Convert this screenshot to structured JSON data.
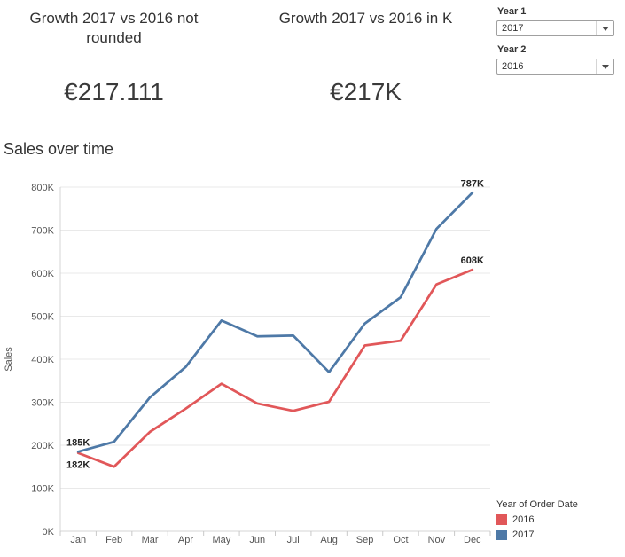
{
  "kpis": [
    {
      "title": "Growth 2017 vs 2016 not rounded",
      "value": "€217.111"
    },
    {
      "title": "Growth 2017 vs 2016 in K",
      "value": "€217K"
    }
  ],
  "filters": [
    {
      "label": "Year 1",
      "value": "2017"
    },
    {
      "label": "Year 2",
      "value": "2016"
    }
  ],
  "chart_heading": "Sales over time",
  "chart_data": {
    "type": "line",
    "title": "Sales over time",
    "x": [
      "Jan",
      "Feb",
      "Mar",
      "Apr",
      "May",
      "Jun",
      "Jul",
      "Aug",
      "Sep",
      "Oct",
      "Nov",
      "Dec"
    ],
    "xlabel": "",
    "ylabel": "Sales",
    "ylim": [
      0,
      800
    ],
    "yticks": [
      "0K",
      "100K",
      "200K",
      "300K",
      "400K",
      "500K",
      "600K",
      "700K",
      "800K"
    ],
    "grid": true,
    "legend_title": "Year of Order Date",
    "legend_position": "bottom-right",
    "series": [
      {
        "name": "2016",
        "color": "#E15759",
        "values": [
          182,
          150,
          231,
          285,
          343,
          297,
          280,
          301,
          432,
          443,
          574,
          608
        ]
      },
      {
        "name": "2017",
        "color": "#4E79A7",
        "values": [
          185,
          208,
          311,
          382,
          490,
          453,
          455,
          370,
          483,
          544,
          703,
          787
        ]
      }
    ],
    "annotations": [
      {
        "text": "185K",
        "series": "2017",
        "month": "Jan",
        "side": "above"
      },
      {
        "text": "182K",
        "series": "2016",
        "month": "Jan",
        "side": "below"
      },
      {
        "text": "787K",
        "series": "2017",
        "month": "Dec",
        "side": "above"
      },
      {
        "text": "608K",
        "series": "2016",
        "month": "Dec",
        "side": "above"
      }
    ]
  }
}
